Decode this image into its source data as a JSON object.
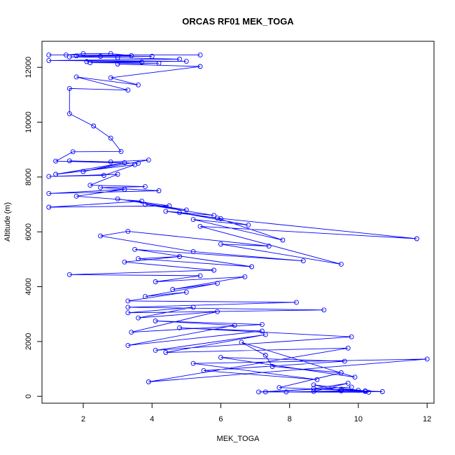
{
  "chart_data": {
    "type": "scatter",
    "title": "ORCAS RF01 MEK_TOGA",
    "xlabel": "MEK_TOGA",
    "ylabel": "Altitude (m)",
    "xlim": [
      0.8,
      12.2
    ],
    "ylim": [
      -250,
      12950
    ],
    "xticks": [
      2,
      4,
      6,
      8,
      10,
      12
    ],
    "yticks": [
      0,
      2000,
      4000,
      6000,
      8000,
      10000,
      12000
    ],
    "grid": false,
    "colors": {
      "series": "#0000ff"
    },
    "series": [
      {
        "marker": "open-circle",
        "line": true,
        "points": [
          [
            1.0,
            12450
          ],
          [
            5.4,
            12450
          ],
          [
            1.5,
            12450
          ],
          [
            2.0,
            12500
          ],
          [
            2.8,
            12500
          ],
          [
            3.4,
            12430
          ],
          [
            1.8,
            12420
          ],
          [
            4.0,
            12400
          ],
          [
            2.5,
            12400
          ],
          [
            1.6,
            12380
          ],
          [
            3.0,
            12350
          ],
          [
            4.8,
            12300
          ],
          [
            1.0,
            12250
          ],
          [
            5.0,
            12220
          ],
          [
            2.1,
            12210
          ],
          [
            3.7,
            12190
          ],
          [
            2.2,
            12170
          ],
          [
            4.2,
            12150
          ],
          [
            3.0,
            12120
          ],
          [
            5.4,
            12030
          ],
          [
            2.8,
            11620
          ],
          [
            3.6,
            11360
          ],
          [
            1.8,
            11650
          ],
          [
            3.3,
            11170
          ],
          [
            1.6,
            11230
          ],
          [
            1.6,
            10310
          ],
          [
            2.3,
            9860
          ],
          [
            2.8,
            9420
          ],
          [
            3.1,
            8930
          ],
          [
            1.7,
            8920
          ],
          [
            1.2,
            8580
          ],
          [
            3.6,
            8500
          ],
          [
            1.6,
            8590
          ],
          [
            2.8,
            8550
          ],
          [
            3.9,
            8620
          ],
          [
            2.0,
            8200
          ],
          [
            3.2,
            8520
          ],
          [
            1.2,
            8100
          ],
          [
            3.5,
            8450
          ],
          [
            2.6,
            8060
          ],
          [
            1.0,
            8020
          ],
          [
            3.0,
            8100
          ],
          [
            2.2,
            7700
          ],
          [
            3.8,
            7650
          ],
          [
            2.5,
            7610
          ],
          [
            4.2,
            7500
          ],
          [
            1.0,
            7400
          ],
          [
            3.2,
            7550
          ],
          [
            1.8,
            7300
          ],
          [
            3.7,
            7120
          ],
          [
            1.0,
            6900
          ],
          [
            4.5,
            6950
          ],
          [
            3.0,
            7200
          ],
          [
            5.0,
            6800
          ],
          [
            3.8,
            7000
          ],
          [
            5.8,
            6600
          ],
          [
            4.4,
            6750
          ],
          [
            6.0,
            6480
          ],
          [
            4.8,
            6700
          ],
          [
            6.8,
            6250
          ],
          [
            5.2,
            6450
          ],
          [
            7.8,
            5700
          ],
          [
            5.9,
            6500
          ],
          [
            11.7,
            5750
          ],
          [
            5.4,
            6200
          ],
          [
            9.5,
            4820
          ],
          [
            6.0,
            5550
          ],
          [
            7.4,
            5480
          ],
          [
            3.3,
            6020
          ],
          [
            2.5,
            5850
          ],
          [
            5.2,
            5280
          ],
          [
            8.4,
            4940
          ],
          [
            3.5,
            5360
          ],
          [
            6.9,
            4730
          ],
          [
            3.6,
            5020
          ],
          [
            4.8,
            5100
          ],
          [
            3.2,
            4900
          ],
          [
            5.8,
            4600
          ],
          [
            1.6,
            4440
          ],
          [
            5.4,
            4400
          ],
          [
            4.1,
            4180
          ],
          [
            6.7,
            4360
          ],
          [
            4.6,
            3900
          ],
          [
            5.9,
            4120
          ],
          [
            3.8,
            3640
          ],
          [
            5.0,
            3800
          ],
          [
            3.3,
            3480
          ],
          [
            8.2,
            3430
          ],
          [
            3.3,
            3250
          ],
          [
            9.0,
            3150
          ],
          [
            3.3,
            3050
          ],
          [
            5.2,
            3250
          ],
          [
            3.6,
            2860
          ],
          [
            5.9,
            3090
          ],
          [
            3.4,
            2340
          ],
          [
            7.2,
            2620
          ],
          [
            4.1,
            2750
          ],
          [
            6.4,
            2590
          ],
          [
            3.3,
            1860
          ],
          [
            7.2,
            2380
          ],
          [
            4.8,
            2500
          ],
          [
            9.8,
            2170
          ],
          [
            4.1,
            1680
          ],
          [
            7.3,
            2250
          ],
          [
            4.4,
            1600
          ],
          [
            9.7,
            1760
          ],
          [
            3.9,
            530
          ],
          [
            12.0,
            1360
          ],
          [
            5.2,
            1200
          ],
          [
            8.8,
            610
          ],
          [
            5.5,
            940
          ],
          [
            9.6,
            1280
          ],
          [
            6.0,
            1420
          ],
          [
            9.9,
            700
          ],
          [
            6.6,
            1970
          ],
          [
            7.3,
            1500
          ],
          [
            7.5,
            1090
          ],
          [
            9.5,
            860
          ],
          [
            7.7,
            320
          ],
          [
            10.7,
            170
          ],
          [
            7.3,
            160
          ],
          [
            9.8,
            340
          ],
          [
            7.1,
            160
          ],
          [
            10.3,
            150
          ],
          [
            7.9,
            160
          ],
          [
            9.5,
            200
          ],
          [
            8.7,
            420
          ],
          [
            10.2,
            200
          ],
          [
            8.7,
            180
          ],
          [
            9.7,
            480
          ],
          [
            8.7,
            280
          ],
          [
            10.0,
            220
          ],
          [
            9.5,
            260
          ],
          [
            10.2,
            180
          ]
        ]
      }
    ]
  }
}
